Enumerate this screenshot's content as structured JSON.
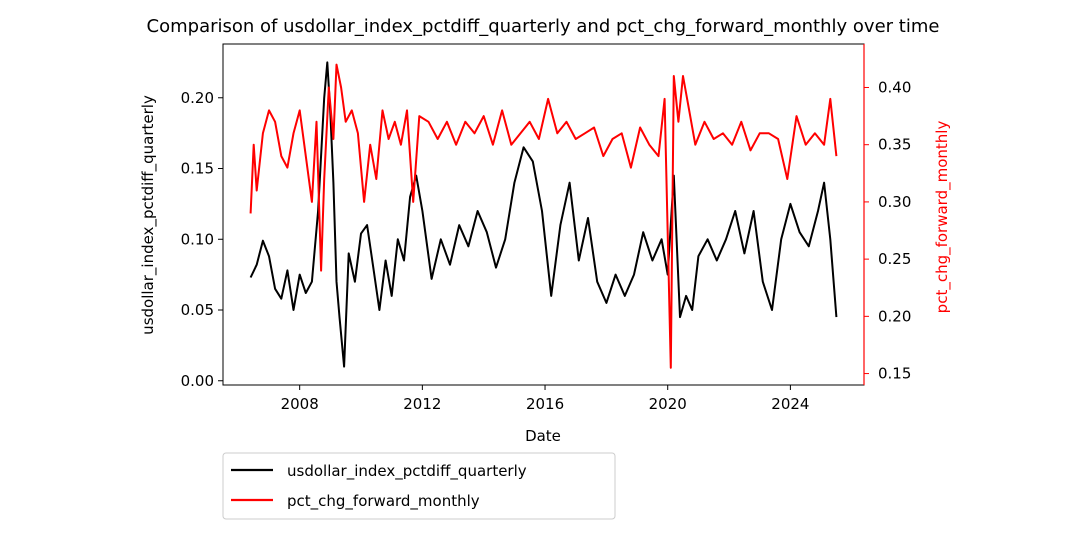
{
  "chart_data": {
    "type": "line",
    "title": "Comparison of usdollar_index_pctdiff_quarterly and pct_chg_forward_monthly over time",
    "xlabel": "Date",
    "ylabel_left": "usdollar_index_pctdiff_quarterly",
    "ylabel_right": "pct_chg_forward_monthly",
    "xlim": [
      2005.5,
      2026.4
    ],
    "ylim_left": [
      -0.003,
      0.238
    ],
    "ylim_right": [
      0.14,
      0.438
    ],
    "x_ticks": [
      2008,
      2012,
      2016,
      2020,
      2024
    ],
    "x_tick_labels": [
      "2008",
      "2012",
      "2016",
      "2020",
      "2024"
    ],
    "y_ticks_left": [
      0.0,
      0.05,
      0.1,
      0.15,
      0.2
    ],
    "y_tick_labels_left": [
      "0.00",
      "0.05",
      "0.10",
      "0.15",
      "0.20"
    ],
    "y_ticks_right": [
      0.15,
      0.2,
      0.25,
      0.3,
      0.35,
      0.4
    ],
    "y_tick_labels_right": [
      "0.15",
      "0.20",
      "0.25",
      "0.30",
      "0.35",
      "0.40"
    ],
    "legend_position": "below-left",
    "grid": false,
    "series": [
      {
        "name": "usdollar_index_pctdiff_quarterly",
        "axis": "left",
        "color": "#000000",
        "x": [
          2006.4,
          2006.6,
          2006.8,
          2007.0,
          2007.2,
          2007.4,
          2007.6,
          2007.8,
          2008.0,
          2008.2,
          2008.4,
          2008.6,
          2008.8,
          2008.9,
          2009.0,
          2009.1,
          2009.2,
          2009.3,
          2009.45,
          2009.6,
          2009.8,
          2010.0,
          2010.2,
          2010.4,
          2010.6,
          2010.8,
          2011.0,
          2011.2,
          2011.4,
          2011.6,
          2011.8,
          2012.0,
          2012.3,
          2012.6,
          2012.9,
          2013.2,
          2013.5,
          2013.8,
          2014.1,
          2014.4,
          2014.7,
          2015.0,
          2015.3,
          2015.6,
          2015.9,
          2016.2,
          2016.5,
          2016.8,
          2017.1,
          2017.4,
          2017.7,
          2018.0,
          2018.3,
          2018.6,
          2018.9,
          2019.2,
          2019.5,
          2019.8,
          2020.0,
          2020.2,
          2020.4,
          2020.6,
          2020.8,
          2021.0,
          2021.3,
          2021.6,
          2021.9,
          2022.2,
          2022.5,
          2022.8,
          2023.1,
          2023.4,
          2023.7,
          2024.0,
          2024.3,
          2024.6,
          2024.9,
          2025.1,
          2025.3,
          2025.5
        ],
        "values": [
          0.073,
          0.082,
          0.099,
          0.088,
          0.065,
          0.058,
          0.078,
          0.05,
          0.075,
          0.062,
          0.07,
          0.12,
          0.2,
          0.225,
          0.19,
          0.14,
          0.07,
          0.045,
          0.01,
          0.09,
          0.07,
          0.104,
          0.11,
          0.08,
          0.05,
          0.085,
          0.06,
          0.1,
          0.085,
          0.13,
          0.145,
          0.12,
          0.072,
          0.1,
          0.082,
          0.11,
          0.095,
          0.12,
          0.105,
          0.08,
          0.1,
          0.14,
          0.165,
          0.155,
          0.12,
          0.06,
          0.11,
          0.14,
          0.085,
          0.115,
          0.07,
          0.055,
          0.075,
          0.06,
          0.075,
          0.105,
          0.085,
          0.1,
          0.075,
          0.145,
          0.045,
          0.06,
          0.05,
          0.088,
          0.1,
          0.085,
          0.1,
          0.12,
          0.09,
          0.12,
          0.07,
          0.05,
          0.1,
          0.125,
          0.105,
          0.095,
          0.12,
          0.14,
          0.1,
          0.045
        ]
      },
      {
        "name": "pct_chg_forward_monthly",
        "axis": "right",
        "color": "#ff0000",
        "x": [
          2006.4,
          2006.5,
          2006.6,
          2006.8,
          2007.0,
          2007.2,
          2007.4,
          2007.6,
          2007.8,
          2008.0,
          2008.2,
          2008.4,
          2008.55,
          2008.7,
          2008.8,
          2008.95,
          2009.1,
          2009.2,
          2009.35,
          2009.5,
          2009.7,
          2009.9,
          2010.1,
          2010.3,
          2010.5,
          2010.7,
          2010.9,
          2011.1,
          2011.3,
          2011.5,
          2011.7,
          2011.9,
          2012.2,
          2012.5,
          2012.8,
          2013.1,
          2013.4,
          2013.7,
          2014.0,
          2014.3,
          2014.6,
          2014.9,
          2015.2,
          2015.5,
          2015.8,
          2016.1,
          2016.4,
          2016.7,
          2017.0,
          2017.3,
          2017.6,
          2017.9,
          2018.2,
          2018.5,
          2018.8,
          2019.1,
          2019.4,
          2019.7,
          2019.9,
          2020.1,
          2020.2,
          2020.35,
          2020.5,
          2020.7,
          2020.9,
          2021.2,
          2021.5,
          2021.8,
          2022.1,
          2022.4,
          2022.7,
          2023.0,
          2023.3,
          2023.6,
          2023.9,
          2024.2,
          2024.5,
          2024.8,
          2025.1,
          2025.3,
          2025.5
        ],
        "values": [
          0.29,
          0.35,
          0.31,
          0.36,
          0.38,
          0.37,
          0.34,
          0.33,
          0.36,
          0.38,
          0.34,
          0.3,
          0.37,
          0.24,
          0.32,
          0.4,
          0.355,
          0.42,
          0.4,
          0.37,
          0.38,
          0.36,
          0.3,
          0.35,
          0.32,
          0.38,
          0.355,
          0.37,
          0.35,
          0.38,
          0.3,
          0.375,
          0.37,
          0.355,
          0.37,
          0.35,
          0.37,
          0.36,
          0.375,
          0.35,
          0.38,
          0.35,
          0.36,
          0.37,
          0.355,
          0.39,
          0.36,
          0.37,
          0.355,
          0.36,
          0.365,
          0.34,
          0.355,
          0.36,
          0.33,
          0.365,
          0.35,
          0.34,
          0.39,
          0.155,
          0.41,
          0.37,
          0.41,
          0.38,
          0.35,
          0.37,
          0.355,
          0.36,
          0.35,
          0.37,
          0.345,
          0.36,
          0.36,
          0.355,
          0.32,
          0.375,
          0.35,
          0.36,
          0.35,
          0.39,
          0.34
        ]
      }
    ]
  }
}
